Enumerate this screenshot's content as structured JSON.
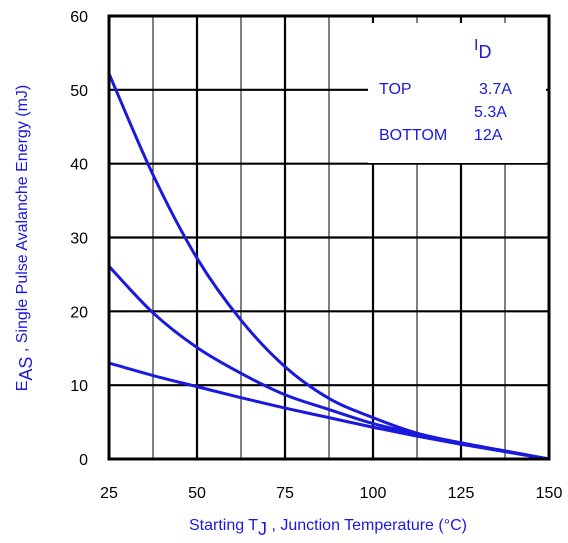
{
  "chart_data": {
    "type": "line",
    "xlabel_main": "Starting T",
    "xlabel_sub": "J",
    "xlabel_rest": " , Junction Temperature (°C)",
    "ylabel_main": "E",
    "ylabel_sub": "AS",
    "ylabel_rest": " , Single Pulse Avalanche Energy (mJ)",
    "xlim": [
      25,
      150
    ],
    "ylim": [
      0,
      60
    ],
    "x_ticks": [
      "25",
      "50",
      "75",
      "100",
      "125",
      "150"
    ],
    "y_ticks": [
      "0",
      "10",
      "20",
      "30",
      "40",
      "50",
      "60"
    ],
    "grid": true,
    "legend": {
      "placement": "top-right",
      "header_main": "I",
      "header_sub": "D",
      "rows": [
        {
          "position": "TOP",
          "current": "3.7A"
        },
        {
          "position": "",
          "current": "5.3A"
        },
        {
          "position": "BOTTOM",
          "current": "12A"
        }
      ]
    },
    "colors": {
      "series": "#1a1adc",
      "axes": "#000000"
    },
    "series": [
      {
        "x": [
          25,
          37.5,
          50,
          62.5,
          75,
          87.5,
          100,
          112.5,
          125,
          137.5,
          150
        ],
        "y": [
          52.2,
          38.5,
          27.2,
          18.8,
          12.5,
          8.2,
          5.6,
          3.5,
          2.2,
          1.1,
          0
        ]
      },
      {
        "x": [
          25,
          37.5,
          50,
          62.5,
          75,
          87.5,
          100,
          112.5,
          125,
          137.5,
          150
        ],
        "y": [
          26.1,
          19.8,
          15.1,
          11.6,
          8.7,
          6.7,
          4.8,
          3.4,
          2.1,
          1.0,
          0
        ]
      },
      {
        "x": [
          25,
          37.5,
          50,
          62.5,
          75,
          87.5,
          100,
          112.5,
          125,
          137.5,
          150
        ],
        "y": [
          13.0,
          11.3,
          9.8,
          8.3,
          6.9,
          5.6,
          4.3,
          3.1,
          2.0,
          1.0,
          0
        ]
      }
    ]
  }
}
